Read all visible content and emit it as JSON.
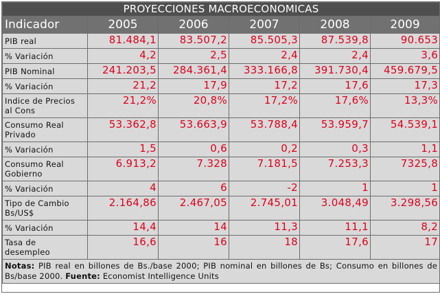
{
  "title": "PROYECCIONES MACROECONOMICAS",
  "header": {
    "label": "Indicador",
    "years": [
      "2005",
      "2006",
      "2007",
      "2008",
      "2009"
    ]
  },
  "rows": [
    {
      "label": [
        "PIB real"
      ],
      "values": [
        "81.484,1",
        "83.507,2",
        "85.505,3",
        "87.539,8",
        "90.653"
      ]
    },
    {
      "label": [
        "% Variación"
      ],
      "values": [
        "4,2",
        "2,5",
        "2,4",
        "2,4",
        "3,6"
      ]
    },
    {
      "label": [
        "PIB Nominal"
      ],
      "values": [
        "241.203,5",
        "284.361,4",
        "333.166,8",
        "391.730,4",
        "459.679,5"
      ]
    },
    {
      "label": [
        "% Variación"
      ],
      "values": [
        "21,2",
        "17,9",
        "17,2",
        "17,6",
        "17,3"
      ]
    },
    {
      "label": [
        "Indice de Precios",
        "al Cons"
      ],
      "values": [
        "21,2%",
        "20,8%",
        "17,2%",
        "17,6%",
        "13,3%"
      ]
    },
    {
      "label": [
        "Consumo Real",
        "Privado"
      ],
      "values": [
        "53.362,8",
        "53.663,9",
        "53.788,4",
        "53.959,7",
        "54.539,1"
      ]
    },
    {
      "label": [
        "% Variación"
      ],
      "values": [
        "1,5",
        "0,6",
        "0,2",
        "0,3",
        "1,1"
      ]
    },
    {
      "label": [
        "Consumo Real",
        "Gobierno"
      ],
      "values": [
        "6.913,2",
        "7.328",
        "7.181,5",
        "7.253,3",
        "7325,8"
      ]
    },
    {
      "label": [
        "% Variación"
      ],
      "values": [
        "4",
        "6",
        "-2",
        "1",
        "1"
      ]
    },
    {
      "label": [
        "Tipo de Cambio",
        "Bs/US$"
      ],
      "values": [
        "2.164,86",
        "2.467,05",
        "2.745,01",
        "3.048,49",
        "3.298,56"
      ]
    },
    {
      "label": [
        "% Variación"
      ],
      "values": [
        "14,4",
        "14",
        "11,3",
        "11,1",
        "8,2"
      ]
    },
    {
      "label": [
        "Tasa de",
        "desempleo"
      ],
      "values": [
        "16,6",
        "16",
        "18",
        "17,6",
        "17"
      ]
    }
  ],
  "notes": {
    "notes_label": "Notas:",
    "notes_text": " PIB real en billones de Bs./base 2000; PIB nominal en billones de Bs; Consumo en billones de Bs/base 2000. ",
    "source_label": "Fuente:",
    "source_text": " Economist Intelligence Units"
  }
}
